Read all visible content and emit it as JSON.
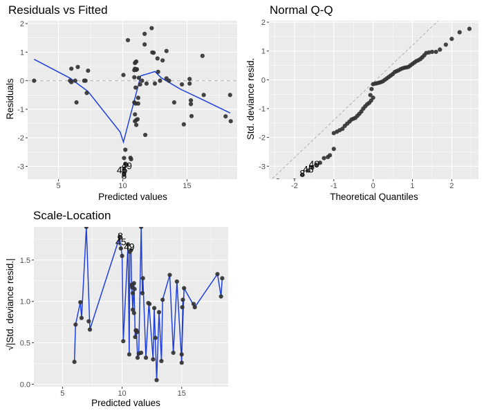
{
  "chart_data": [
    {
      "id": "residuals",
      "type": "scatter",
      "title": "Residuals vs Fitted",
      "xlabel": "Predicted values",
      "ylabel": "Residuals",
      "xlim": [
        2.6,
        18.9
      ],
      "ylim": [
        -3.45,
        2.1
      ],
      "xticks": [
        5,
        10,
        15
      ],
      "yticks": [
        -3,
        -2,
        -1,
        0,
        1,
        2
      ],
      "grid": true,
      "reference_line": {
        "y": 0,
        "style": "dashed"
      },
      "points": [
        [
          3.1,
          0.0
        ],
        [
          5.9,
          0.0
        ],
        [
          6.0,
          -0.05
        ],
        [
          6.3,
          0.0
        ],
        [
          6.0,
          0.42
        ],
        [
          6.5,
          0.48
        ],
        [
          7.3,
          0.35
        ],
        [
          6.4,
          -0.76
        ],
        [
          7.2,
          -0.43
        ],
        [
          7.0,
          0.0
        ],
        [
          7.1,
          0.0
        ],
        [
          10.05,
          0.2
        ],
        [
          10.4,
          1.42
        ],
        [
          11.7,
          1.27
        ],
        [
          11.7,
          1.64
        ],
        [
          12.25,
          1.84
        ],
        [
          12.3,
          0.99
        ],
        [
          12.4,
          0.98
        ],
        [
          13.4,
          1.04
        ],
        [
          12.7,
          0.78
        ],
        [
          13.1,
          0.71
        ],
        [
          10.9,
          0.37
        ],
        [
          10.95,
          0.42
        ],
        [
          11.0,
          0.4
        ],
        [
          11.05,
          0.38
        ],
        [
          11.1,
          0.4
        ],
        [
          10.95,
          0.62
        ],
        [
          11.0,
          0.65
        ],
        [
          11.05,
          0.67
        ],
        [
          10.9,
          0.12
        ],
        [
          11.25,
          0.1
        ],
        [
          11.35,
          -0.13
        ],
        [
          11.5,
          0.0
        ],
        [
          11.85,
          -0.1
        ],
        [
          12.5,
          -0.1
        ],
        [
          12.75,
          0.31
        ],
        [
          12.9,
          0.0
        ],
        [
          13.4,
          0.08
        ],
        [
          13.6,
          0.0
        ],
        [
          14.6,
          -0.13
        ],
        [
          15.2,
          0.06
        ],
        [
          15.2,
          -0.1
        ],
        [
          16.2,
          0.87
        ],
        [
          16.3,
          -0.5
        ],
        [
          18.35,
          -0.5
        ],
        [
          11.0,
          -0.24
        ],
        [
          11.2,
          -0.6
        ],
        [
          10.9,
          -0.76
        ],
        [
          11.0,
          -0.8
        ],
        [
          11.2,
          -0.8
        ],
        [
          10.95,
          -1.18
        ],
        [
          10.95,
          -1.42
        ],
        [
          11.05,
          -1.38
        ],
        [
          11.15,
          -1.35
        ],
        [
          11.05,
          -1.55
        ],
        [
          11.75,
          -1.9
        ],
        [
          14.0,
          -0.76
        ],
        [
          15.3,
          -0.69
        ],
        [
          15.3,
          -0.82
        ],
        [
          15.35,
          -1.24
        ],
        [
          14.75,
          -1.53
        ],
        [
          18.0,
          -1.25
        ],
        [
          18.4,
          -1.42
        ],
        [
          10.2,
          -2.42
        ],
        [
          10.1,
          -2.71
        ],
        [
          10.6,
          -2.7
        ],
        [
          10.65,
          -2.75
        ],
        [
          10.2,
          -2.91
        ],
        [
          10.3,
          -2.95
        ],
        [
          10.1,
          -3.12
        ],
        [
          10.1,
          -3.2
        ],
        [
          10.1,
          -3.3
        ]
      ],
      "smooth": [
        [
          3.1,
          0.75
        ],
        [
          5.9,
          0.09
        ],
        [
          7.3,
          -0.38
        ],
        [
          9.8,
          -1.8
        ],
        [
          10.05,
          -2.15
        ],
        [
          11.4,
          0.17
        ],
        [
          12.0,
          0.25
        ],
        [
          12.5,
          0.32
        ],
        [
          13.0,
          0.1
        ],
        [
          14.5,
          -0.3
        ],
        [
          16.0,
          -0.62
        ],
        [
          18.35,
          -1.13
        ]
      ],
      "annotations": [
        {
          "text": "45",
          "x": 9.95,
          "y": -3.12
        },
        {
          "text": "49",
          "x": 10.3,
          "y": -2.98
        },
        {
          "text": "8",
          "x": 10.1,
          "y": -3.32
        }
      ]
    },
    {
      "id": "qq",
      "type": "scatter",
      "title": "Normal Q-Q",
      "xlabel": "Theoretical Quantiles",
      "ylabel": "Std. deviance resid.",
      "xlim": [
        -2.65,
        2.68
      ],
      "ylim": [
        -3.45,
        2.05
      ],
      "xticks": [
        -2,
        -1,
        0,
        1,
        2
      ],
      "yticks": [
        -3,
        -2,
        -1,
        0,
        1,
        2
      ],
      "grid": true,
      "reference_line": {
        "slope": 1.3,
        "intercept": -0.1,
        "style": "dashed"
      },
      "points": [
        [
          -2.42,
          -3.5
        ],
        [
          -2.0,
          -3.5
        ],
        [
          -1.8,
          -3.3
        ],
        [
          -1.65,
          -3.15
        ],
        [
          -1.55,
          -3.05
        ],
        [
          -1.45,
          -2.95
        ],
        [
          -1.35,
          -2.88
        ],
        [
          -1.25,
          -2.72
        ],
        [
          -1.15,
          -2.68
        ],
        [
          -1.1,
          -2.62
        ],
        [
          -1.0,
          -2.4
        ],
        [
          -1.0,
          -1.85
        ],
        [
          -0.92,
          -1.8
        ],
        [
          -0.85,
          -1.75
        ],
        [
          -0.78,
          -1.7
        ],
        [
          -0.72,
          -1.6
        ],
        [
          -0.66,
          -1.52
        ],
        [
          -0.6,
          -1.45
        ],
        [
          -0.55,
          -1.38
        ],
        [
          -0.5,
          -1.35
        ],
        [
          -0.45,
          -1.32
        ],
        [
          -0.4,
          -1.25
        ],
        [
          -0.35,
          -1.18
        ],
        [
          -0.3,
          -1.1
        ],
        [
          -0.25,
          -1.0
        ],
        [
          -0.2,
          -0.92
        ],
        [
          -0.15,
          -0.85
        ],
        [
          -0.1,
          -0.8
        ],
        [
          -0.05,
          -0.72
        ],
        [
          0.0,
          -0.62
        ],
        [
          -0.07,
          -0.53
        ],
        [
          -0.04,
          -0.32
        ],
        [
          0.0,
          -0.15
        ],
        [
          0.05,
          -0.13
        ],
        [
          0.1,
          -0.12
        ],
        [
          0.15,
          -0.1
        ],
        [
          0.2,
          -0.08
        ],
        [
          0.25,
          -0.05
        ],
        [
          0.3,
          0.0
        ],
        [
          0.35,
          0.05
        ],
        [
          0.4,
          0.1
        ],
        [
          0.45,
          0.15
        ],
        [
          0.5,
          0.2
        ],
        [
          0.55,
          0.27
        ],
        [
          0.6,
          0.3
        ],
        [
          0.65,
          0.33
        ],
        [
          0.7,
          0.37
        ],
        [
          0.75,
          0.4
        ],
        [
          0.8,
          0.42
        ],
        [
          0.85,
          0.43
        ],
        [
          0.9,
          0.45
        ],
        [
          0.95,
          0.5
        ],
        [
          1.0,
          0.55
        ],
        [
          1.05,
          0.6
        ],
        [
          1.1,
          0.65
        ],
        [
          1.15,
          0.68
        ],
        [
          1.2,
          0.72
        ],
        [
          1.25,
          0.78
        ],
        [
          1.3,
          0.85
        ],
        [
          1.35,
          0.93
        ],
        [
          1.42,
          0.95
        ],
        [
          1.5,
          0.97
        ],
        [
          1.6,
          0.97
        ],
        [
          1.7,
          1.05
        ],
        [
          1.85,
          1.22
        ],
        [
          2.0,
          1.42
        ],
        [
          2.2,
          1.65
        ],
        [
          2.45,
          1.77
        ]
      ],
      "annotations": [
        {
          "text": "49",
          "x": -1.5,
          "y": -2.92
        },
        {
          "text": "45",
          "x": -1.65,
          "y": -3.1
        },
        {
          "text": "8",
          "x": -1.8,
          "y": -3.25
        }
      ]
    },
    {
      "id": "scale_location",
      "type": "line",
      "title": "Scale-Location",
      "xlabel": "Predicted values",
      "ylabel": "√|Std. deviance resid.|",
      "xlim": [
        2.6,
        18.9
      ],
      "ylim": [
        -0.03,
        1.9
      ],
      "xticks": [
        5,
        10,
        15
      ],
      "yticks": [
        0.0,
        0.5,
        1.0,
        1.5
      ],
      "ytick_labels": [
        "0.0",
        "0.5",
        "1.0",
        "1.5"
      ],
      "grid": true,
      "points": [
        [
          6.0,
          0.27
        ],
        [
          6.1,
          0.72
        ],
        [
          6.6,
          0.8
        ],
        [
          6.5,
          0.99
        ],
        [
          7.0,
          1.9
        ],
        [
          7.3,
          0.66
        ],
        [
          7.2,
          0.76
        ],
        [
          9.8,
          1.78
        ],
        [
          9.9,
          1.64
        ],
        [
          10.0,
          1.55
        ],
        [
          10.1,
          0.52
        ],
        [
          10.5,
          1.69
        ],
        [
          10.6,
          0.36
        ],
        [
          10.65,
          1.6
        ],
        [
          10.75,
          1.62
        ],
        [
          10.8,
          1.2
        ],
        [
          10.85,
          1.17
        ],
        [
          10.9,
          1.1
        ],
        [
          11.0,
          1.22
        ],
        [
          11.05,
          1.15
        ],
        [
          11.0,
          0.86
        ],
        [
          10.9,
          0.9
        ],
        [
          11.1,
          0.57
        ],
        [
          11.15,
          0.65
        ],
        [
          11.2,
          0.65
        ],
        [
          11.25,
          0.63
        ],
        [
          11.3,
          0.32
        ],
        [
          11.4,
          0.37
        ],
        [
          11.6,
          1.9
        ],
        [
          11.75,
          1.28
        ],
        [
          11.7,
          1.1
        ],
        [
          11.6,
          0.38
        ],
        [
          12.0,
          0.32
        ],
        [
          12.2,
          0.98
        ],
        [
          12.3,
          0.97
        ],
        [
          12.6,
          0.3
        ],
        [
          12.7,
          0.92
        ],
        [
          12.8,
          0.56
        ],
        [
          12.9,
          0.05
        ],
        [
          13.1,
          0.87
        ],
        [
          13.3,
          0.28
        ],
        [
          13.4,
          1.02
        ],
        [
          14.0,
          1.32
        ],
        [
          14.3,
          0.38
        ],
        [
          14.6,
          1.24
        ],
        [
          15.0,
          0.26
        ],
        [
          15.0,
          0.36
        ],
        [
          15.05,
          0.93
        ],
        [
          15.1,
          1.02
        ],
        [
          15.2,
          1.16
        ],
        [
          16.0,
          0.97
        ],
        [
          16.1,
          0.93
        ],
        [
          18.0,
          1.33
        ],
        [
          18.3,
          1.06
        ],
        [
          18.4,
          1.28
        ]
      ],
      "line_path": [
        [
          6.0,
          0.27
        ],
        [
          6.1,
          0.72
        ],
        [
          6.5,
          0.99
        ],
        [
          6.6,
          0.8
        ],
        [
          7.0,
          1.9
        ],
        [
          7.3,
          0.66
        ],
        [
          9.8,
          1.78
        ],
        [
          10.0,
          1.55
        ],
        [
          10.1,
          0.52
        ],
        [
          10.5,
          1.69
        ],
        [
          10.6,
          0.36
        ],
        [
          10.65,
          1.6
        ],
        [
          10.75,
          1.62
        ],
        [
          10.8,
          1.2
        ],
        [
          10.9,
          0.9
        ],
        [
          11.0,
          1.22
        ],
        [
          11.1,
          0.57
        ],
        [
          11.2,
          0.65
        ],
        [
          11.3,
          0.32
        ],
        [
          11.4,
          0.37
        ],
        [
          11.6,
          1.9
        ],
        [
          11.7,
          1.1
        ],
        [
          11.75,
          1.28
        ],
        [
          12.0,
          0.32
        ],
        [
          12.25,
          0.98
        ],
        [
          12.6,
          0.3
        ],
        [
          12.7,
          0.92
        ],
        [
          12.9,
          0.05
        ],
        [
          13.1,
          0.87
        ],
        [
          13.3,
          0.28
        ],
        [
          13.4,
          1.02
        ],
        [
          14.0,
          1.32
        ],
        [
          14.3,
          0.38
        ],
        [
          14.6,
          1.24
        ],
        [
          15.0,
          0.26
        ],
        [
          15.1,
          1.02
        ],
        [
          15.0,
          0.36
        ],
        [
          15.2,
          1.16
        ],
        [
          16.1,
          0.93
        ],
        [
          18.0,
          1.33
        ],
        [
          18.3,
          1.06
        ],
        [
          18.4,
          1.28
        ]
      ],
      "annotations": [
        {
          "text": "8",
          "x": 9.85,
          "y": 1.79
        },
        {
          "text": "45",
          "x": 9.9,
          "y": 1.72
        },
        {
          "text": "49",
          "x": 10.6,
          "y": 1.66
        }
      ]
    }
  ]
}
